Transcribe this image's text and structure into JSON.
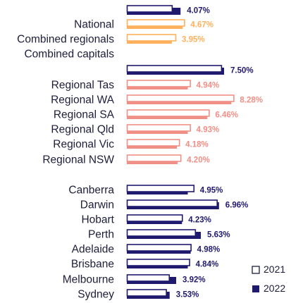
{
  "colors": {
    "dark": "#1f1a6e",
    "orange": "#ffb05c",
    "salmon": "#f08f86",
    "text": "#1d1d3a"
  },
  "chart_data": {
    "type": "bar",
    "orientation": "horizontal",
    "series_names": [
      "2021",
      "2022"
    ],
    "legend": [
      "2021",
      "2022"
    ],
    "legend_position": "bottom-right",
    "rows": [
      {
        "label": "",
        "v2021": 3.1,
        "v2022": 3.7,
        "value_label": "4.07%",
        "color": "dark"
      },
      {
        "label": "National",
        "v2021": 3.95,
        "v2022": 3.85,
        "value_label": "4.67%",
        "color": "orange"
      },
      {
        "label": "Combined regionals",
        "v2021": 3.35,
        "v2022": 3.1,
        "value_label": "3.95%",
        "color": "orange"
      },
      {
        "label": "Combined capitals",
        "v2021": null,
        "v2022": null,
        "value_label": "",
        "color": "dark"
      },
      {
        "label": "",
        "v2021": 6.5,
        "v2022": 6.7,
        "value_label": "7.50%",
        "color": "dark"
      },
      {
        "label": "Regional Tas",
        "v2021": 4.35,
        "v2022": 4.2,
        "value_label": "4.94%",
        "color": "salmon"
      },
      {
        "label": "Regional WA",
        "v2021": 7.35,
        "v2022": 7.2,
        "value_label": "8.28%",
        "color": "salmon"
      },
      {
        "label": "Regional SA",
        "v2021": 5.65,
        "v2022": 5.55,
        "value_label": "6.46%",
        "color": "salmon"
      },
      {
        "label": "Regional Qld",
        "v2021": 4.35,
        "v2022": 4.2,
        "value_label": "4.93%",
        "color": "salmon"
      },
      {
        "label": "Regional Vic",
        "v2021": 3.6,
        "v2022": 3.45,
        "value_label": "4.18%",
        "color": "salmon"
      },
      {
        "label": "Regional NSW",
        "v2021": 3.7,
        "v2022": 3.5,
        "value_label": "4.20%",
        "color": "salmon"
      },
      {
        "label": "Canberra",
        "v2021": 4.6,
        "v2022": 4.2,
        "value_label": "4.95%",
        "color": "dark"
      },
      {
        "label": "Darwin",
        "v2021": 6.2,
        "v2022": 6.35,
        "value_label": "6.96%",
        "color": "dark"
      },
      {
        "label": "Hobart",
        "v2021": 3.8,
        "v2022": 3.8,
        "value_label": "4.23%",
        "color": "dark"
      },
      {
        "label": "Perth",
        "v2021": 4.7,
        "v2022": 5.1,
        "value_label": "5.63%",
        "color": "dark"
      },
      {
        "label": "Adelaide",
        "v2021": 4.4,
        "v2022": 4.4,
        "value_label": "4.98%",
        "color": "dark"
      },
      {
        "label": "Brisbane",
        "v2021": 4.3,
        "v2022": 4.2,
        "value_label": "4.84%",
        "color": "dark"
      },
      {
        "label": "Melbourne",
        "v2021": 2.9,
        "v2022": 3.4,
        "value_label": "3.92%",
        "color": "dark"
      },
      {
        "label": "Sydney",
        "v2021": 2.7,
        "v2022": 2.95,
        "value_label": "3.53%",
        "color": "dark"
      }
    ]
  }
}
